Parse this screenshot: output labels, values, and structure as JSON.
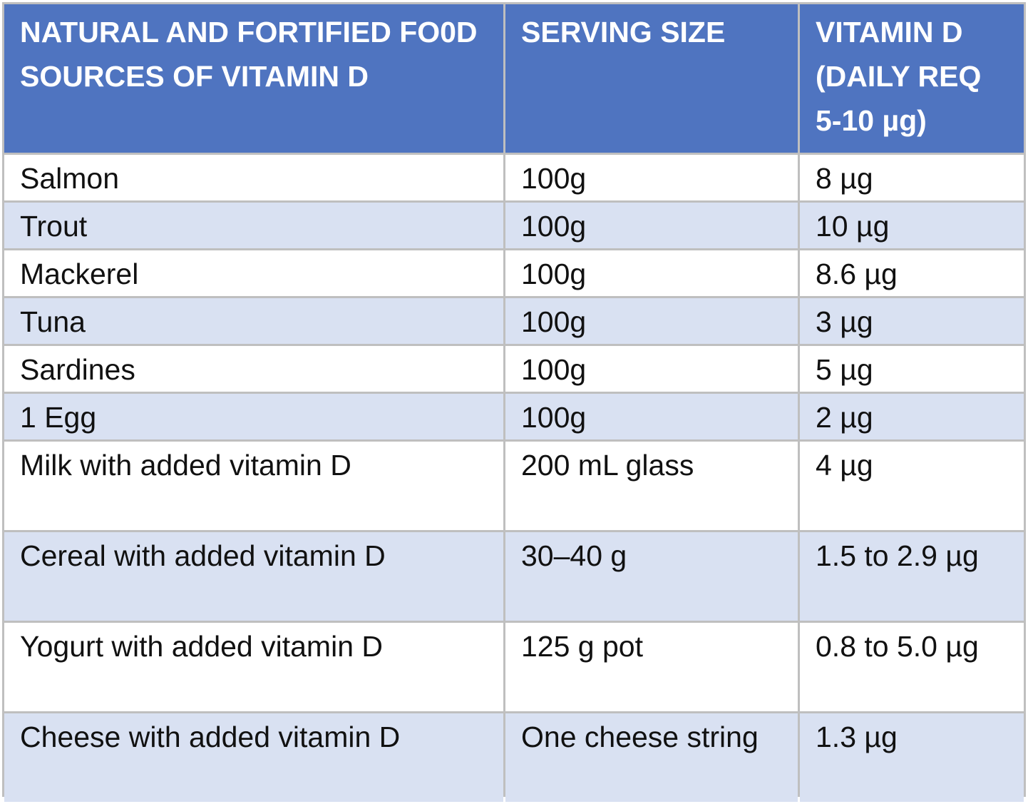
{
  "chart_data": {
    "type": "table",
    "columns": [
      "NATURAL AND FORTIFIED FO0D SOURCES OF VITAMIN D",
      "SERVING SIZE",
      "VITAMIN D (DAILY REQ 5-10 µg)"
    ],
    "rows": [
      [
        "Salmon",
        "100g",
        "8 µg"
      ],
      [
        "Trout",
        "100g",
        "10 µg"
      ],
      [
        "Mackerel",
        "100g",
        "8.6 µg"
      ],
      [
        "Tuna",
        "100g",
        "3 µg"
      ],
      [
        "Sardines",
        "100g",
        "5 µg"
      ],
      [
        "1 Egg",
        "100g",
        "2 µg"
      ],
      [
        "Milk with added vitamin D",
        "200 mL glass",
        "4 µg"
      ],
      [
        "Cereal with added vitamin D",
        "30–40 g",
        "1.5 to 2.9 µg"
      ],
      [
        "Yogurt with added vitamin D",
        "125 g pot",
        "0.8 to 5.0 µg"
      ],
      [
        "Cheese with added vitamin D",
        "One cheese string",
        "1.3 µg"
      ]
    ]
  },
  "colors": {
    "header_bg": "#4f74c0",
    "header_text": "#ffffff",
    "row_alt_bg": "#d9e1f2",
    "row_bg": "#ffffff",
    "grid": "#bfbfbf"
  }
}
